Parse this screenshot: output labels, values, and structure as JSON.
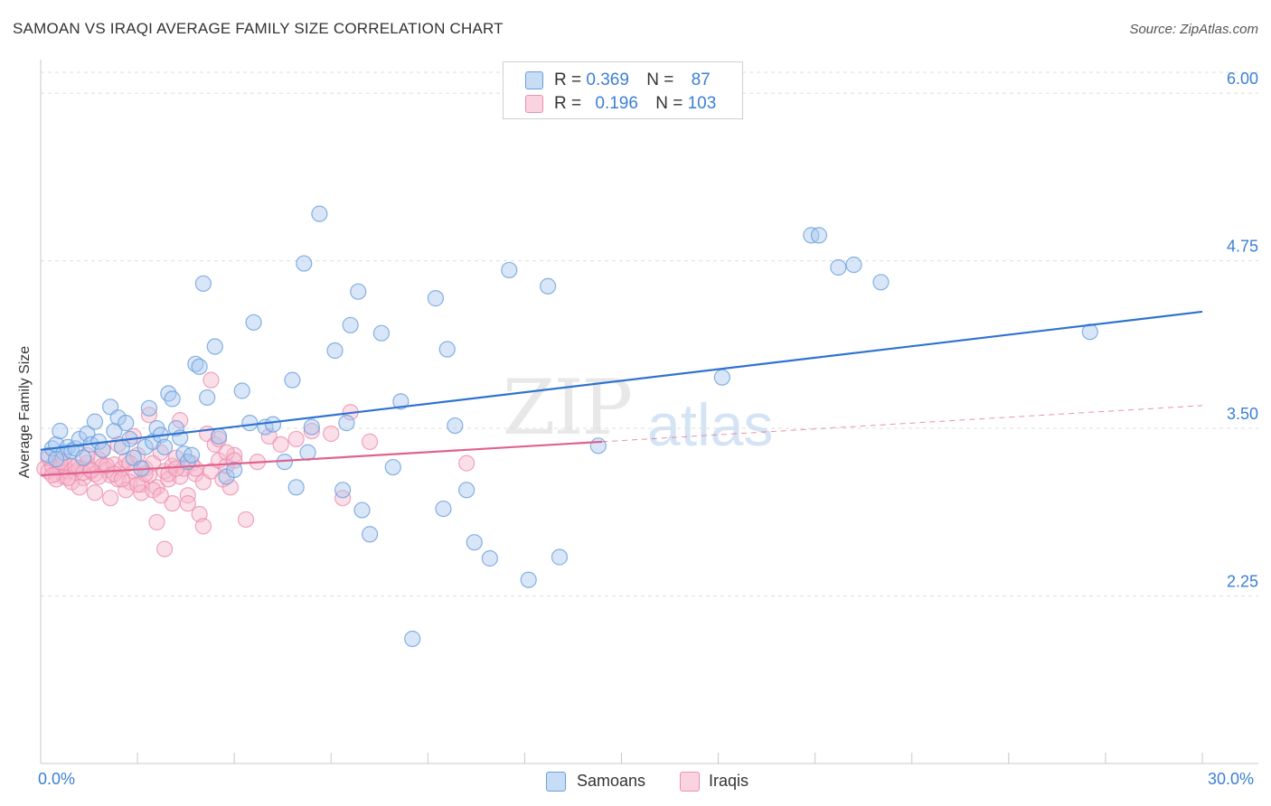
{
  "title": "SAMOAN VS IRAQI AVERAGE FAMILY SIZE CORRELATION CHART",
  "source": "Source: ZipAtlas.com",
  "watermark": {
    "zip": "ZIP",
    "atlas": "atlas"
  },
  "legend_top": {
    "samoans": {
      "r_label": "R =",
      "r_value": "0.369",
      "n_label": "N =",
      "n_value": "87"
    },
    "iraqis": {
      "r_label": "R =",
      "r_value": "0.196",
      "n_label": "N =",
      "n_value": "103"
    }
  },
  "legend_bottom": {
    "samoans": "Samoans",
    "iraqis": "Iraqis"
  },
  "colors": {
    "samoan_fill": "#a8c8f0",
    "samoan_stroke": "#6a9fdc",
    "samoan_line": "#2f73cf",
    "iraqi_fill": "#f6b8cc",
    "iraqi_stroke": "#ec8fae",
    "iraqi_line": "#e0628c",
    "tick_label": "#3a7fd5",
    "grid": "#dedede"
  },
  "chart_data": {
    "type": "scatter",
    "title": "SAMOAN VS IRAQI AVERAGE FAMILY SIZE CORRELATION CHART",
    "xlabel": "",
    "ylabel": "Average Family Size",
    "xlim": [
      0,
      30
    ],
    "ylim": [
      1.0,
      6.25
    ],
    "x_tick_labels": [
      {
        "value": 0,
        "label": "0.0%"
      },
      {
        "value": 30,
        "label": "30.0%"
      }
    ],
    "y_ticks": [
      {
        "value": 2.25,
        "label": "2.25"
      },
      {
        "value": 3.5,
        "label": "3.50"
      },
      {
        "value": 4.75,
        "label": "4.75"
      },
      {
        "value": 6.0,
        "label": "6.00"
      }
    ],
    "grid": true,
    "series": [
      {
        "name": "Samoans",
        "r": 0.369,
        "n": 87,
        "trend": {
          "x0": 0,
          "y0": 3.34,
          "x1": 30,
          "y1": 4.37,
          "dashed_to": null
        },
        "points": [
          [
            0.2,
            3.3
          ],
          [
            0.3,
            3.35
          ],
          [
            0.4,
            3.38
          ],
          [
            0.5,
            3.48
          ],
          [
            0.6,
            3.32
          ],
          [
            0.7,
            3.36
          ],
          [
            0.8,
            3.33
          ],
          [
            0.9,
            3.35
          ],
          [
            1.0,
            3.42
          ],
          [
            1.1,
            3.28
          ],
          [
            1.2,
            3.46
          ],
          [
            1.3,
            3.38
          ],
          [
            1.4,
            3.55
          ],
          [
            1.5,
            3.4
          ],
          [
            1.6,
            3.34
          ],
          [
            1.8,
            3.66
          ],
          [
            1.9,
            3.48
          ],
          [
            2.0,
            3.58
          ],
          [
            2.2,
            3.54
          ],
          [
            2.3,
            3.42
          ],
          [
            2.4,
            3.28
          ],
          [
            2.6,
            3.2
          ],
          [
            2.7,
            3.36
          ],
          [
            2.8,
            3.65
          ],
          [
            2.9,
            3.4
          ],
          [
            3.0,
            3.5
          ],
          [
            3.1,
            3.45
          ],
          [
            3.2,
            3.36
          ],
          [
            3.3,
            3.76
          ],
          [
            3.4,
            3.72
          ],
          [
            3.5,
            3.5
          ],
          [
            3.6,
            3.43
          ],
          [
            3.7,
            3.31
          ],
          [
            3.8,
            3.25
          ],
          [
            3.9,
            3.3
          ],
          [
            4.0,
            3.98
          ],
          [
            4.1,
            3.96
          ],
          [
            4.2,
            4.58
          ],
          [
            4.3,
            3.73
          ],
          [
            4.5,
            4.11
          ],
          [
            4.6,
            3.44
          ],
          [
            4.8,
            3.14
          ],
          [
            5.0,
            3.19
          ],
          [
            5.2,
            3.78
          ],
          [
            5.4,
            3.54
          ],
          [
            5.5,
            4.29
          ],
          [
            5.8,
            3.51
          ],
          [
            6.0,
            3.53
          ],
          [
            6.3,
            3.25
          ],
          [
            6.5,
            3.86
          ],
          [
            6.6,
            3.06
          ],
          [
            6.8,
            4.73
          ],
          [
            6.9,
            3.32
          ],
          [
            7.0,
            3.51
          ],
          [
            7.2,
            5.1
          ],
          [
            7.6,
            4.08
          ],
          [
            7.8,
            3.04
          ],
          [
            7.9,
            3.54
          ],
          [
            8.0,
            4.27
          ],
          [
            8.2,
            4.52
          ],
          [
            8.3,
            2.89
          ],
          [
            8.5,
            2.71
          ],
          [
            8.8,
            4.21
          ],
          [
            9.1,
            3.21
          ],
          [
            9.3,
            3.7
          ],
          [
            9.6,
            1.93
          ],
          [
            10.2,
            4.47
          ],
          [
            10.4,
            2.9
          ],
          [
            10.5,
            4.09
          ],
          [
            10.7,
            3.52
          ],
          [
            11.0,
            3.04
          ],
          [
            11.2,
            2.65
          ],
          [
            11.6,
            2.53
          ],
          [
            12.1,
            4.68
          ],
          [
            12.6,
            2.37
          ],
          [
            13.1,
            4.56
          ],
          [
            13.4,
            2.54
          ],
          [
            14.4,
            3.37
          ],
          [
            17.6,
            3.88
          ],
          [
            19.9,
            4.94
          ],
          [
            20.1,
            4.94
          ],
          [
            20.6,
            4.7
          ],
          [
            21.0,
            4.72
          ],
          [
            21.7,
            4.59
          ],
          [
            27.1,
            4.22
          ],
          [
            0.4,
            3.27
          ],
          [
            2.1,
            3.36
          ]
        ]
      },
      {
        "name": "Iraqis",
        "r": 0.196,
        "n": 103,
        "trend": {
          "x0": 0,
          "y0": 3.15,
          "x1": 14.5,
          "y1": 3.4,
          "dashed_to": {
            "x": 30,
            "y": 3.67
          }
        },
        "points": [
          [
            0.1,
            3.2
          ],
          [
            0.2,
            3.18
          ],
          [
            0.3,
            3.22
          ],
          [
            0.4,
            3.16
          ],
          [
            0.5,
            3.2
          ],
          [
            0.6,
            3.14
          ],
          [
            0.7,
            3.18
          ],
          [
            0.8,
            3.22
          ],
          [
            0.9,
            3.17
          ],
          [
            1.0,
            3.2
          ],
          [
            1.1,
            3.13
          ],
          [
            1.2,
            3.24
          ],
          [
            1.3,
            3.18
          ],
          [
            1.4,
            3.16
          ],
          [
            1.5,
            3.27
          ],
          [
            1.6,
            3.22
          ],
          [
            1.7,
            3.19
          ],
          [
            1.8,
            3.15
          ],
          [
            1.9,
            3.23
          ],
          [
            2.0,
            3.12
          ],
          [
            2.1,
            3.2
          ],
          [
            2.2,
            3.26
          ],
          [
            2.3,
            3.1
          ],
          [
            2.4,
            3.18
          ],
          [
            2.5,
            3.3
          ],
          [
            2.6,
            3.08
          ],
          [
            2.7,
            3.2
          ],
          [
            2.8,
            3.15
          ],
          [
            2.9,
            3.24
          ],
          [
            3.0,
            3.06
          ],
          [
            3.1,
            3.32
          ],
          [
            3.2,
            3.18
          ],
          [
            3.3,
            3.12
          ],
          [
            3.4,
            3.22
          ],
          [
            3.5,
            3.28
          ],
          [
            3.6,
            3.14
          ],
          [
            3.7,
            3.2
          ],
          [
            3.8,
            3.0
          ],
          [
            3.9,
            3.24
          ],
          [
            4.0,
            3.16
          ],
          [
            4.1,
            2.86
          ],
          [
            4.2,
            3.1
          ],
          [
            4.3,
            3.46
          ],
          [
            4.4,
            3.18
          ],
          [
            4.5,
            3.38
          ],
          [
            4.6,
            3.26
          ],
          [
            4.7,
            3.12
          ],
          [
            4.8,
            3.22
          ],
          [
            4.9,
            3.06
          ],
          [
            5.0,
            3.3
          ],
          [
            0.2,
            3.28
          ],
          [
            0.4,
            3.12
          ],
          [
            0.6,
            3.24
          ],
          [
            0.8,
            3.1
          ],
          [
            1.0,
            3.06
          ],
          [
            1.2,
            3.3
          ],
          [
            1.4,
            3.02
          ],
          [
            1.6,
            3.34
          ],
          [
            1.8,
            2.98
          ],
          [
            2.0,
            3.38
          ],
          [
            2.2,
            3.04
          ],
          [
            2.4,
            3.44
          ],
          [
            2.6,
            3.02
          ],
          [
            2.8,
            3.6
          ],
          [
            3.0,
            2.8
          ],
          [
            3.2,
            2.6
          ],
          [
            3.4,
            2.94
          ],
          [
            3.6,
            3.56
          ],
          [
            3.8,
            2.94
          ],
          [
            4.0,
            3.2
          ],
          [
            4.2,
            2.77
          ],
          [
            4.4,
            3.86
          ],
          [
            4.6,
            3.42
          ],
          [
            4.8,
            3.32
          ],
          [
            5.0,
            3.26
          ],
          [
            5.3,
            2.82
          ],
          [
            5.6,
            3.25
          ],
          [
            5.9,
            3.44
          ],
          [
            6.2,
            3.38
          ],
          [
            6.6,
            3.42
          ],
          [
            7.0,
            3.48
          ],
          [
            7.5,
            3.46
          ],
          [
            7.8,
            2.98
          ],
          [
            8.0,
            3.62
          ],
          [
            8.5,
            3.4
          ],
          [
            11.0,
            3.24
          ],
          [
            0.3,
            3.15
          ],
          [
            0.5,
            3.25
          ],
          [
            0.7,
            3.13
          ],
          [
            0.9,
            3.21
          ],
          [
            1.1,
            3.17
          ],
          [
            1.3,
            3.19
          ],
          [
            1.5,
            3.14
          ],
          [
            1.7,
            3.22
          ],
          [
            1.9,
            3.16
          ],
          [
            2.1,
            3.12
          ],
          [
            2.3,
            3.24
          ],
          [
            2.5,
            3.08
          ],
          [
            2.7,
            3.16
          ],
          [
            2.9,
            3.04
          ],
          [
            3.1,
            3.0
          ],
          [
            3.3,
            3.16
          ],
          [
            3.5,
            3.2
          ]
        ]
      }
    ]
  }
}
